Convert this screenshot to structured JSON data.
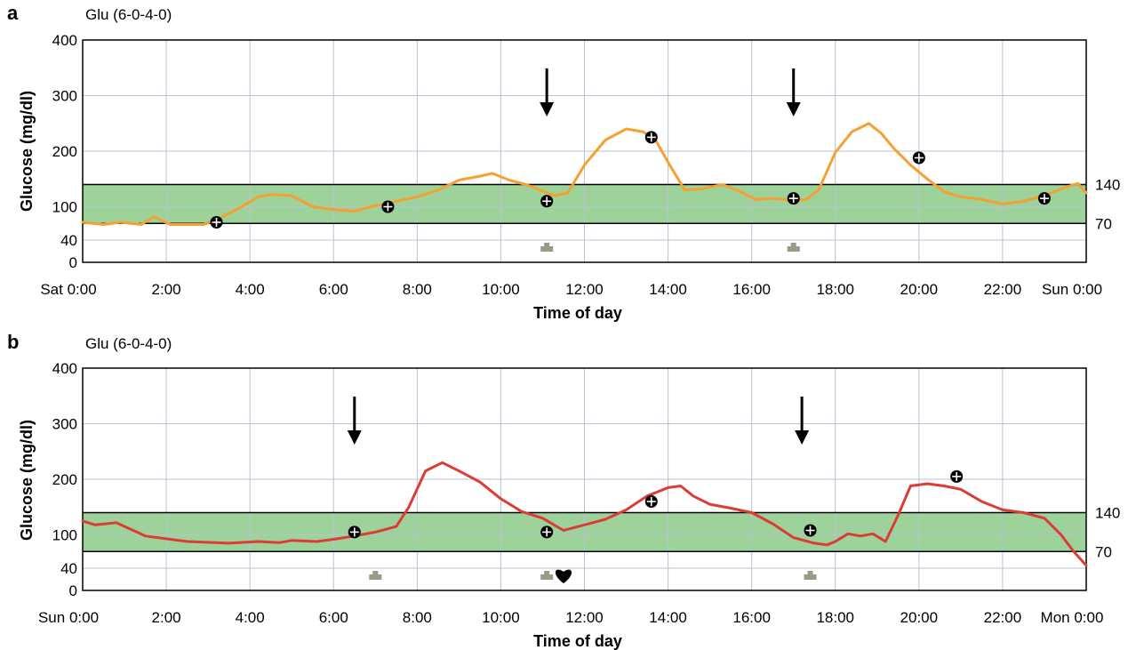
{
  "colors": {
    "target_band": "#9dd39a",
    "grid": "#b8c2d6",
    "series_a": "#f5a030",
    "series_b": "#dc3c36",
    "meal_marker": "#9a9a88"
  },
  "chart_data": [
    {
      "type": "line",
      "panel": "a",
      "title": "Glu (6-0-4-0)",
      "xlabel": "Time of day",
      "ylabel": "Glucose (mg/dl)",
      "xlim": [
        0,
        24
      ],
      "ylim": [
        0,
        400
      ],
      "x_tick_labels": [
        "Sat 0:00",
        "2:00",
        "4:00",
        "6:00",
        "8:00",
        "10:00",
        "12:00",
        "14:00",
        "16:00",
        "18:00",
        "20:00",
        "22:00",
        "Sun 0:00"
      ],
      "y_ticks": [
        "0",
        "40",
        "100",
        "200",
        "300",
        "400"
      ],
      "target_range_labels": [
        "70",
        "140"
      ],
      "target_range": [
        70,
        140
      ],
      "grid": true,
      "series": [
        {
          "x": [
            0,
            0.5,
            0.9,
            1.4,
            1.7,
            2.1,
            2.5,
            2.9,
            3.3,
            3.8,
            4.2,
            4.5,
            5.0,
            5.5,
            6.0,
            6.5,
            7.0,
            7.5,
            8.0,
            8.5,
            9.0,
            9.5,
            9.8,
            10.2,
            10.6,
            11.0,
            11.3,
            11.6,
            12.0,
            12.5,
            13.0,
            13.4,
            13.7,
            14.0,
            14.4,
            14.8,
            15.3,
            15.7,
            16.1,
            16.5,
            16.9,
            17.3,
            17.6,
            18.0,
            18.4,
            18.8,
            19.1,
            19.4,
            19.8,
            20.2,
            20.6,
            21.0,
            21.5,
            22.0,
            22.5,
            23.0,
            23.5,
            23.8,
            24.0
          ],
          "y": [
            72,
            68,
            72,
            68,
            82,
            68,
            68,
            68,
            80,
            100,
            118,
            122,
            120,
            100,
            95,
            92,
            102,
            110,
            118,
            130,
            148,
            155,
            160,
            148,
            140,
            128,
            120,
            125,
            175,
            220,
            240,
            235,
            220,
            180,
            130,
            132,
            140,
            128,
            113,
            115,
            112,
            113,
            130,
            198,
            235,
            250,
            232,
            205,
            175,
            150,
            127,
            118,
            113,
            105,
            110,
            120,
            135,
            142,
            125
          ]
        }
      ],
      "glucose_readings": {
        "x": [
          3.2,
          7.3,
          11.1,
          13.6,
          17.0,
          20.0,
          23.0
        ],
        "y": [
          72,
          100,
          110,
          225,
          115,
          188,
          115
        ]
      },
      "arrows_x": [
        11.1,
        17.0
      ],
      "meal_markers_x": [
        11.1,
        17.0
      ]
    },
    {
      "type": "line",
      "panel": "b",
      "title": "Glu (6-0-4-0)",
      "xlabel": "Time of day",
      "ylabel": "Glucose (mg/dl)",
      "xlim": [
        0,
        24
      ],
      "ylim": [
        0,
        400
      ],
      "x_tick_labels": [
        "Sun 0:00",
        "2:00",
        "4:00",
        "6:00",
        "8:00",
        "10:00",
        "12:00",
        "14:00",
        "16:00",
        "18:00",
        "20:00",
        "22:00",
        "Mon 0:00"
      ],
      "y_ticks": [
        "0",
        "40",
        "100",
        "200",
        "300",
        "400"
      ],
      "target_range_labels": [
        "70",
        "140"
      ],
      "target_range": [
        70,
        140
      ],
      "grid": true,
      "series": [
        {
          "x": [
            0,
            0.3,
            0.8,
            1.5,
            2.5,
            3.5,
            4.2,
            4.7,
            5.0,
            5.6,
            6.0,
            6.5,
            7.0,
            7.5,
            7.8,
            8.2,
            8.6,
            9.0,
            9.5,
            10.0,
            10.5,
            11.0,
            11.5,
            12.0,
            12.5,
            13.0,
            13.5,
            14.0,
            14.3,
            14.6,
            15.0,
            15.5,
            16.0,
            16.5,
            17.0,
            17.5,
            17.8,
            18.0,
            18.3,
            18.6,
            18.9,
            19.2,
            19.5,
            19.8,
            20.2,
            20.6,
            21.0,
            21.5,
            22.0,
            22.5,
            23.0,
            23.4,
            23.7,
            24.0
          ],
          "y": [
            125,
            118,
            122,
            98,
            88,
            85,
            88,
            86,
            90,
            88,
            92,
            98,
            105,
            115,
            150,
            215,
            230,
            215,
            195,
            165,
            142,
            130,
            108,
            118,
            128,
            145,
            170,
            185,
            188,
            170,
            155,
            148,
            140,
            120,
            95,
            85,
            82,
            88,
            102,
            98,
            102,
            88,
            135,
            188,
            192,
            188,
            182,
            160,
            145,
            140,
            130,
            100,
            70,
            45
          ]
        }
      ],
      "glucose_readings": {
        "x": [
          6.5,
          11.1,
          13.6,
          17.4,
          20.9
        ],
        "y": [
          105,
          105,
          160,
          108,
          205
        ]
      },
      "arrows_x": [
        6.5,
        17.2
      ],
      "meal_markers_x": [
        7.0,
        11.1,
        17.4
      ],
      "heart_marker_x": 11.5
    }
  ]
}
